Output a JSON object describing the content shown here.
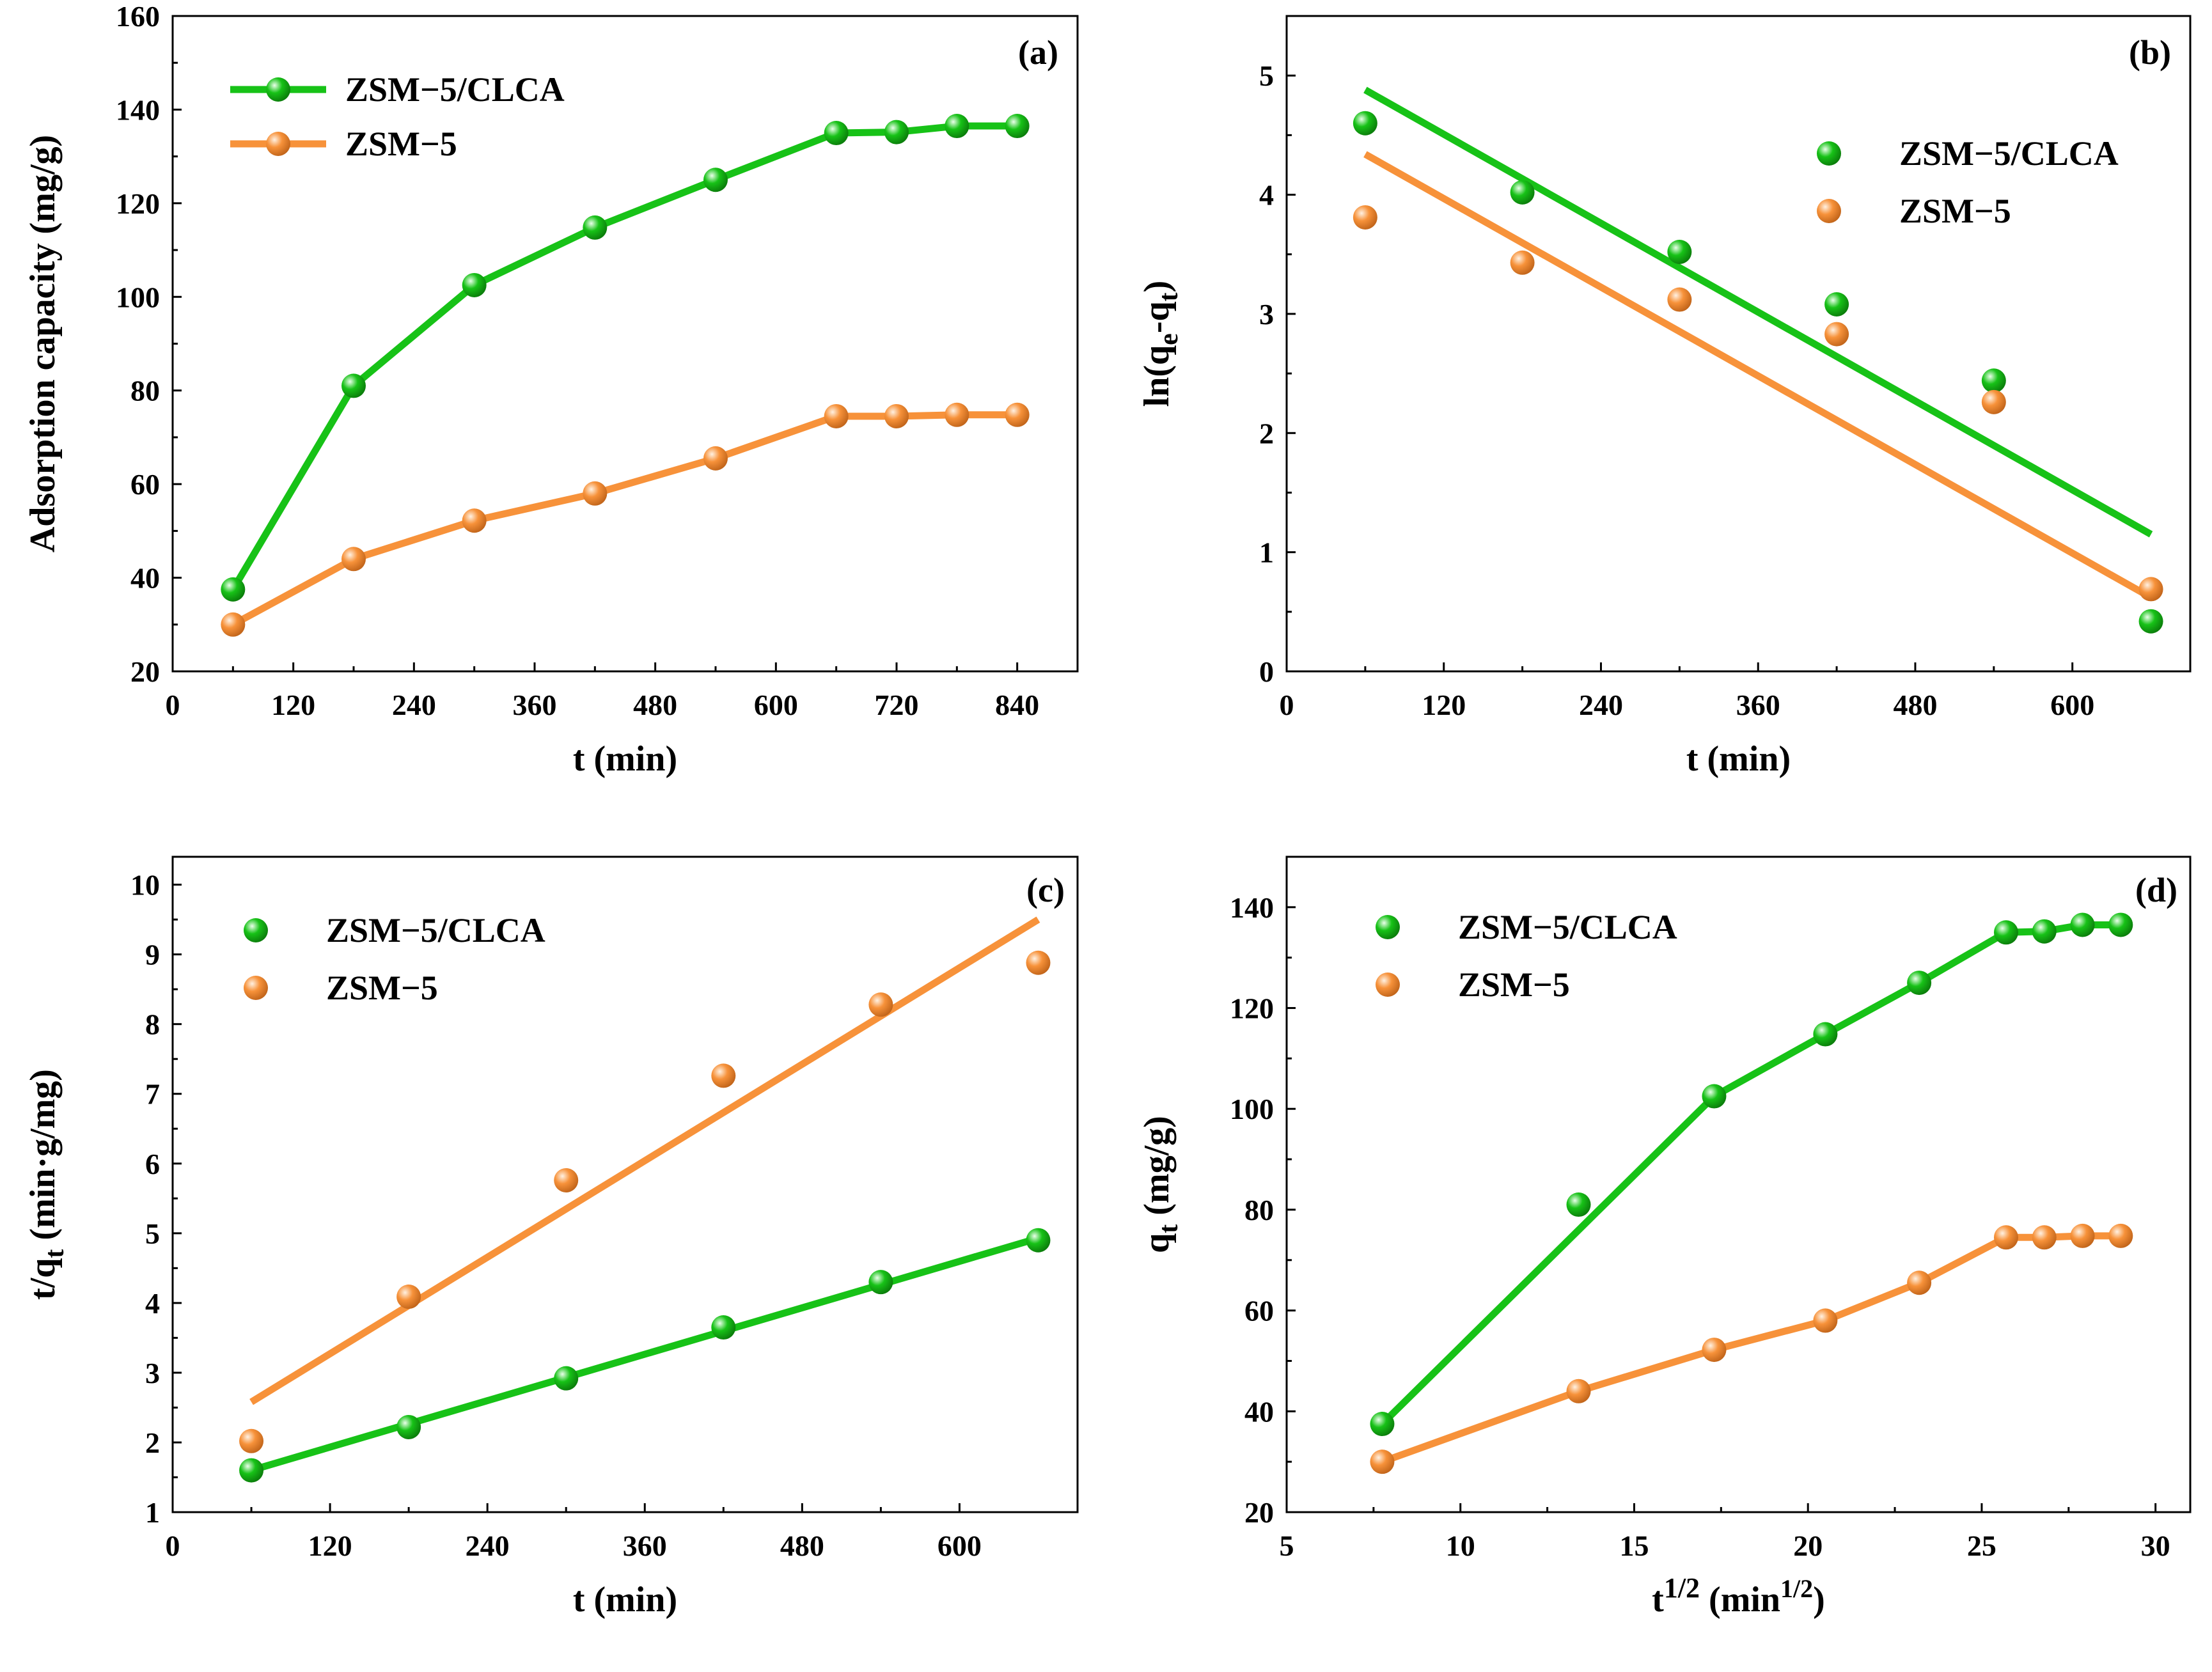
{
  "colors": {
    "green": "#17c217",
    "orange": "#f7923a",
    "axis": "#000000"
  },
  "chart_data": [
    {
      "type": "line",
      "panel": "(a)",
      "xlabel": "t (min)",
      "ylabel": "Adsorption capacity (mg/g)",
      "xlim": [
        0,
        900
      ],
      "ylim": [
        20,
        160
      ],
      "xticks": [
        0,
        120,
        240,
        360,
        480,
        600,
        720,
        840
      ],
      "yticks": [
        20,
        40,
        60,
        80,
        100,
        120,
        140,
        160
      ],
      "legend_position": "top-left",
      "series": [
        {
          "name": "ZSM−5/CLCA",
          "color": "#17c217",
          "style": "line-marker",
          "x": [
            60,
            180,
            300,
            420,
            540,
            660,
            720,
            780,
            840
          ],
          "y": [
            37.5,
            81,
            102.5,
            114.8,
            125,
            135,
            135.2,
            136.5,
            136.5
          ]
        },
        {
          "name": "ZSM−5",
          "color": "#f7923a",
          "style": "line-marker",
          "x": [
            60,
            180,
            300,
            420,
            540,
            660,
            720,
            780,
            840
          ],
          "y": [
            30,
            44,
            52.2,
            58,
            65.5,
            74.5,
            74.5,
            74.8,
            74.8
          ]
        }
      ]
    },
    {
      "type": "scatter",
      "panel": "(b)",
      "xlabel": "t (min)",
      "ylabel": "ln(qe-qt)",
      "ylabel_parts": {
        "pre": "ln(q",
        "sub1": "e",
        "mid": "-q",
        "sub2": "t",
        "post": ")"
      },
      "xlim": [
        0,
        690
      ],
      "ylim": [
        0,
        5.5
      ],
      "xticks": [
        0,
        120,
        240,
        360,
        480,
        600
      ],
      "yticks": [
        0,
        1,
        2,
        3,
        4,
        5
      ],
      "legend_position": "top-right",
      "series": [
        {
          "name": "ZSM−5/CLCA",
          "color": "#17c217",
          "style": "scatter-fit",
          "x": [
            60,
            180,
            300,
            420,
            540,
            660
          ],
          "y": [
            4.6,
            4.02,
            3.52,
            3.08,
            2.44,
            0.42
          ],
          "fit": {
            "x": [
              60,
              660
            ],
            "y": [
              4.88,
              1.15
            ]
          }
        },
        {
          "name": "ZSM−5",
          "color": "#f7923a",
          "style": "scatter-fit",
          "x": [
            60,
            180,
            300,
            420,
            540,
            660
          ],
          "y": [
            3.81,
            3.43,
            3.12,
            2.83,
            2.26,
            0.69
          ],
          "fit": {
            "x": [
              60,
              660
            ],
            "y": [
              4.34,
              0.62
            ]
          }
        }
      ]
    },
    {
      "type": "scatter",
      "panel": "(c)",
      "xlabel": "t (min)",
      "ylabel": "t/qt (min·g/mg)",
      "ylabel_parts": {
        "pre": "t/q",
        "sub1": "t",
        "post": " (min·g/mg)"
      },
      "xlim": [
        0,
        690
      ],
      "ylim": [
        1,
        10.4
      ],
      "xticks": [
        0,
        120,
        240,
        360,
        480,
        600
      ],
      "yticks": [
        1,
        2,
        3,
        4,
        5,
        6,
        7,
        8,
        9,
        10
      ],
      "legend_position": "top-left",
      "series": [
        {
          "name": "ZSM−5/CLCA",
          "color": "#17c217",
          "style": "scatter-fit",
          "x": [
            60,
            180,
            300,
            420,
            540,
            660
          ],
          "y": [
            1.6,
            2.22,
            2.92,
            3.65,
            4.3,
            4.9
          ],
          "fit": {
            "x": [
              60,
              660
            ],
            "y": [
              1.6,
              4.93
            ]
          }
        },
        {
          "name": "ZSM−5",
          "color": "#f7923a",
          "style": "scatter-fit",
          "x": [
            60,
            180,
            300,
            420,
            540,
            660
          ],
          "y": [
            2.02,
            4.09,
            5.76,
            7.26,
            8.28,
            8.88
          ],
          "fit": {
            "x": [
              60,
              660
            ],
            "y": [
              2.58,
              9.5
            ]
          }
        }
      ]
    },
    {
      "type": "line",
      "panel": "(d)",
      "xlabel": "t1/2 (min1/2)",
      "xlabel_parts": {
        "base": "t",
        "sup1": "1/2",
        "mid": " (min",
        "sup2": "1/2",
        "post": ")"
      },
      "ylabel": "qt (mg/g)",
      "ylabel_parts": {
        "pre": "q",
        "sub1": "t",
        "post": " (mg/g)"
      },
      "xlim": [
        5,
        31
      ],
      "ylim": [
        20,
        150
      ],
      "xticks": [
        5,
        10,
        15,
        20,
        25,
        30
      ],
      "yticks": [
        20,
        40,
        60,
        80,
        100,
        120,
        140
      ],
      "legend_position": "top-left",
      "series": [
        {
          "name": "ZSM−5/CLCA",
          "color": "#17c217",
          "style": "scatter-fit",
          "x": [
            7.75,
            13.4,
            17.3,
            20.5,
            23.2,
            25.7,
            26.8,
            27.9,
            29
          ],
          "y": [
            37.5,
            81,
            102.5,
            114.8,
            125,
            135,
            135.2,
            136.5,
            136.5
          ],
          "fit": {
            "x": [
              7.75,
              17.3,
              20.5,
              23.2,
              25.7,
              26.8,
              27.9,
              29
            ],
            "y": [
              37.5,
              102.5,
              114.8,
              125,
              135,
              135.2,
              136.5,
              136.5
            ]
          }
        },
        {
          "name": "ZSM−5",
          "color": "#f7923a",
          "style": "scatter-fit",
          "x": [
            7.75,
            13.4,
            17.3,
            20.5,
            23.2,
            25.7,
            26.8,
            27.9,
            29
          ],
          "y": [
            30,
            44,
            52.2,
            58,
            65.5,
            74.5,
            74.5,
            74.8,
            74.8
          ],
          "fit": {
            "x": [
              7.75,
              13.4,
              17.3,
              20.5,
              23.2,
              25.7,
              26.8,
              27.9,
              29
            ],
            "y": [
              30,
              44,
              52.2,
              58,
              65.5,
              74.5,
              74.5,
              74.8,
              74.8
            ]
          }
        }
      ]
    }
  ]
}
